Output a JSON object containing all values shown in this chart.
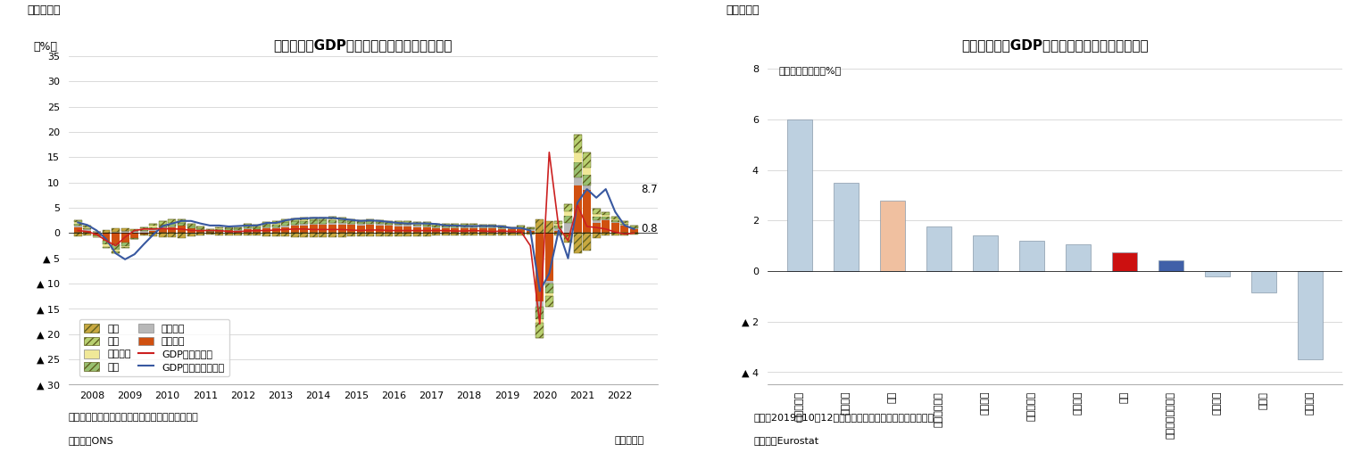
{
  "fig1_title": "英国の実質GDP成長率（需要項目別寄与度）",
  "fig1_ylabel": "（%）",
  "fig1_xlabel_note": "（注）季節調整値、寄与度は前年同期比の寄与度",
  "fig1_source": "（資料）ONS",
  "fig1_period": "（四半期）",
  "fig1_ylim": [
    -30,
    35
  ],
  "fig1_yticks": [
    -30,
    -25,
    -20,
    -15,
    -10,
    -5,
    0,
    5,
    10,
    15,
    20,
    25,
    30,
    35
  ],
  "fig1_ytick_labels": [
    "▲ 30",
    "▲ 25",
    "▲ 20",
    "▲ 15",
    "▲ 10",
    "▲ 5",
    "0",
    "5",
    "10",
    "15",
    "20",
    "25",
    "30",
    "35"
  ],
  "fig1_years": [
    2008,
    2009,
    2010,
    2011,
    2012,
    2013,
    2014,
    2015,
    2016,
    2017,
    2018,
    2019,
    2020,
    2021,
    2022
  ],
  "fig1_label_87": "8.7",
  "fig1_label_08": "0.8",
  "fig1_colors": {
    "imports": "#C8A840",
    "exports": "#B8D070",
    "inventory": "#F0E898",
    "investment": "#98C070",
    "govt": "#B8B8B8",
    "consumption": "#D05010",
    "gdp_qoq": "#CC2020",
    "gdp_yoy": "#3858A0"
  },
  "fig2_title": "欧米主要国のGDP水準（コロナ禍前との比較）",
  "fig2_inner_label": "（コロナ禍前比、%）",
  "fig2_note": "（注）2019年10－12月期比、一部の国は伸び率等から推計",
  "fig2_source": "（資料）Eurostat",
  "fig2_ylim": [
    -4.5,
    8.5
  ],
  "fig2_yticks": [
    -4,
    -2,
    0,
    2,
    4,
    6,
    8
  ],
  "fig2_ytick_labels": [
    "▲ 4",
    "▲ 2",
    "0",
    "2",
    "4",
    "6",
    "8"
  ],
  "fig2_categories": [
    "リトアニア",
    "ラトビア",
    "米国",
    "オーストリア",
    "ベルギー",
    "ポルトガル",
    "フランス",
    "英国",
    "ユーロ圏（全体）",
    "イタリア",
    "ドイツ",
    "スペイン"
  ],
  "fig2_values": [
    6.0,
    3.5,
    2.8,
    1.75,
    1.42,
    1.2,
    1.05,
    0.75,
    0.42,
    -0.2,
    -0.85,
    -3.5
  ],
  "fig2_colors": [
    "#BDD0E0",
    "#BDD0E0",
    "#F0C0A0",
    "#BDD0E0",
    "#BDD0E0",
    "#BDD0E0",
    "#BDD0E0",
    "#CC1010",
    "#4060A8",
    "#BDD0E0",
    "#BDD0E0",
    "#BDD0E0"
  ]
}
